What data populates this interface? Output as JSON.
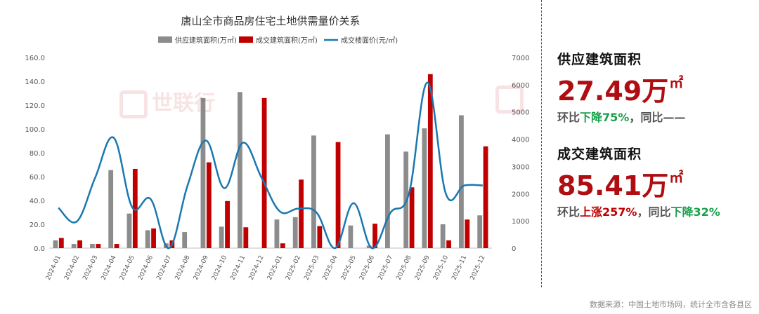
{
  "chart_data": {
    "type": "bar",
    "title": "唐山全市商品房住宅土地供需量价关系",
    "categories": [
      "2024-01",
      "2024-02",
      "2024-03",
      "2024-04",
      "2024-05",
      "2024-06",
      "2024-07",
      "2024-08",
      "2024-09",
      "2024-10",
      "2024-11",
      "2024-12",
      "2025-01",
      "2025-02",
      "2025-03",
      "2025-04",
      "2025-05",
      "2025-06",
      "2025-07",
      "2025-08",
      "2025-09",
      "2025-10",
      "2025-11",
      "2025-12"
    ],
    "series": [
      {
        "name": "供应建筑面积(万㎡)",
        "type": "bar",
        "axis": "left",
        "color": "#8c8c8c",
        "values": [
          6.5,
          3.5,
          3.5,
          65.5,
          29.0,
          15.0,
          4.0,
          13.5,
          126.0,
          18.0,
          131.0,
          0,
          24.0,
          26.0,
          94.5,
          0,
          19.0,
          2.0,
          95.5,
          81.0,
          100.5,
          20.0,
          111.5,
          27.49
        ]
      },
      {
        "name": "成交建筑面积(万㎡)",
        "type": "bar",
        "axis": "left",
        "color": "#c00000",
        "values": [
          8.5,
          6.5,
          3.5,
          3.5,
          66.5,
          16.5,
          6.5,
          0,
          72.0,
          39.5,
          17.5,
          126.0,
          4.0,
          57.5,
          18.5,
          89.0,
          0,
          20.5,
          0,
          51.0,
          146.0,
          6.5,
          24.0,
          85.41
        ]
      },
      {
        "name": "成交楼面价(元/㎡)",
        "type": "line",
        "axis": "right",
        "color": "#1a78b0",
        "values": [
          1480,
          980,
          2600,
          4050,
          1500,
          1800,
          0,
          2300,
          3950,
          2200,
          3870,
          2600,
          1350,
          1450,
          1300,
          0,
          1650,
          0,
          1300,
          2000,
          6080,
          2000,
          2300,
          2300
        ]
      }
    ],
    "left_axis": {
      "min": 0,
      "max": 160,
      "step": 20,
      "tick_labels": [
        "0.0",
        "20.0",
        "40.0",
        "60.0",
        "80.0",
        "100.0",
        "120.0",
        "140.0",
        "160.0"
      ]
    },
    "right_axis": {
      "min": 0,
      "max": 7000,
      "step": 1000,
      "tick_labels": [
        "0",
        "1000",
        "2000",
        "3000",
        "4000",
        "5000",
        "6000",
        "7000"
      ]
    },
    "legend_position": "top",
    "grid": false
  },
  "watermark": "世联行",
  "kpis": [
    {
      "title": "供应建筑面积",
      "value": "27.49万",
      "unit": "㎡",
      "mom_label": "环比",
      "mom_value": "下降75%",
      "mom_color": "#18a04a",
      "sep": "，",
      "yoy_label": "同比",
      "yoy_value": "——",
      "yoy_color": "#555555"
    },
    {
      "title": "成交建筑面积",
      "value": "85.41万",
      "unit": "㎡",
      "mom_label": "环比",
      "mom_value": "上涨257%",
      "mom_color": "#c00000",
      "sep": "，",
      "yoy_label": "同比",
      "yoy_value": "下降32%",
      "yoy_color": "#18a04a"
    }
  ],
  "source": "数据来源：中国土地市场网，统计全市含各县区"
}
